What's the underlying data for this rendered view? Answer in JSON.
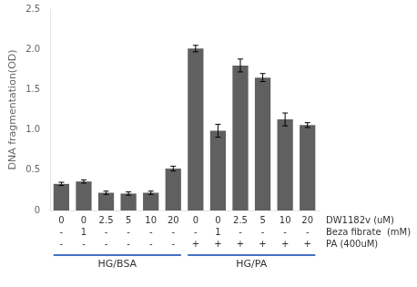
{
  "chart_data": {
    "type": "bar",
    "ylabel": "DNA fragmentation(OD)",
    "color": "#606060",
    "ylim": [
      0,
      2.5
    ],
    "yticks": [
      0,
      0.5,
      1.0,
      1.5,
      2.0,
      2.5
    ],
    "grid": false,
    "legend": false,
    "row_labels": [
      "DW1182v (uM)",
      "Beza fibrate  (mM)",
      "PA (400uM)"
    ],
    "groups": [
      {
        "name": "HG/BSA",
        "color": "#4472c4",
        "categories": [
          [
            "0",
            "-",
            "-"
          ],
          [
            "0",
            "1",
            "-"
          ],
          [
            "2.5",
            "-",
            "-"
          ],
          [
            "5",
            "-",
            "-"
          ],
          [
            "10",
            "-",
            "-"
          ],
          [
            "20",
            "-",
            "-"
          ]
        ],
        "values": [
          0.33,
          0.36,
          0.22,
          0.21,
          0.22,
          0.52
        ],
        "errors": [
          0.02,
          0.02,
          0.02,
          0.02,
          0.02,
          0.03
        ]
      },
      {
        "name": "HG/PA",
        "color": "#4472c4",
        "categories": [
          [
            "0",
            "-",
            "+"
          ],
          [
            "0",
            "1",
            "+"
          ],
          [
            "2.5",
            "-",
            "+"
          ],
          [
            "5",
            "-",
            "+"
          ],
          [
            "10",
            "-",
            "+"
          ],
          [
            "20",
            "-",
            "+"
          ]
        ],
        "values": [
          2.01,
          0.99,
          1.8,
          1.65,
          1.13,
          1.06
        ],
        "errors": [
          0.04,
          0.08,
          0.08,
          0.05,
          0.08,
          0.03
        ]
      }
    ]
  }
}
